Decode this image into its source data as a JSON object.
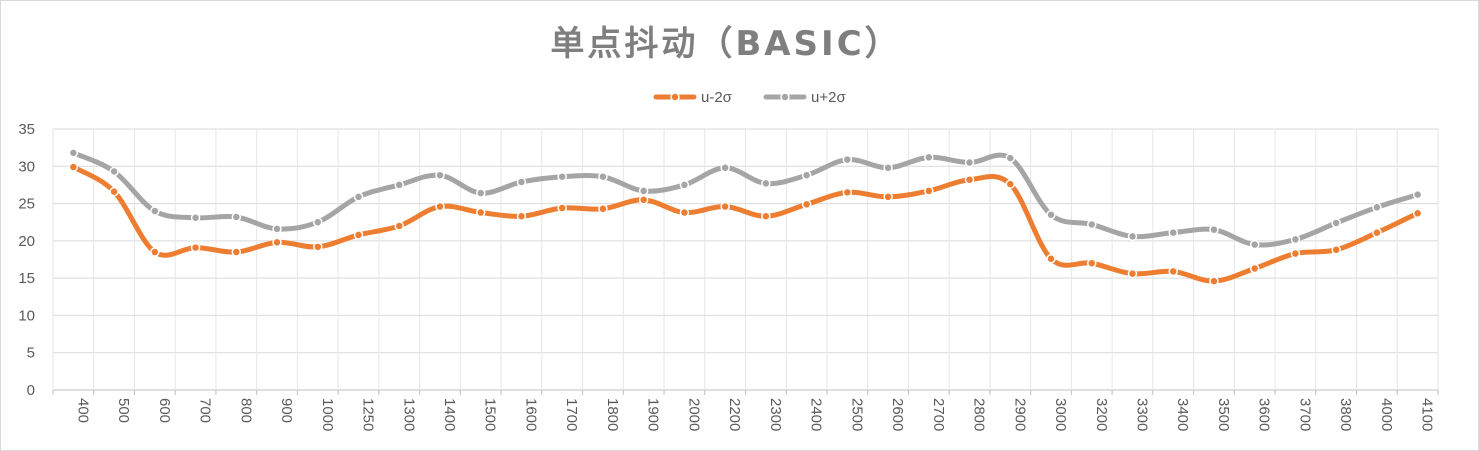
{
  "chart_data": {
    "type": "line",
    "title": "单点抖动（BASIC）",
    "xlabel": "",
    "ylabel": "",
    "categories": [
      "400",
      "500",
      "600",
      "700",
      "800",
      "900",
      "1000",
      "1250",
      "1300",
      "1400",
      "1500",
      "1600",
      "1700",
      "1800",
      "1900",
      "2000",
      "2200",
      "2300",
      "2400",
      "2500",
      "2600",
      "2700",
      "2800",
      "2900",
      "3000",
      "3200",
      "3300",
      "3400",
      "3500",
      "3600",
      "3700",
      "3800",
      "4000",
      "4100"
    ],
    "ylim": [
      0,
      35
    ],
    "yticks": [
      "0",
      "5",
      "10",
      "15",
      "20",
      "25",
      "30",
      "35"
    ],
    "grid": true,
    "legend_position": "top-center",
    "smooth": true,
    "series": [
      {
        "name": "u-2σ",
        "color": "#ed7d31",
        "values": [
          29.9,
          26.6,
          18.5,
          19.1,
          18.5,
          19.8,
          19.2,
          20.8,
          22.0,
          24.6,
          23.8,
          23.3,
          24.4,
          24.3,
          25.5,
          23.8,
          24.6,
          23.3,
          24.9,
          26.5,
          25.9,
          26.7,
          28.2,
          27.6,
          17.6,
          17.0,
          15.6,
          15.9,
          14.6,
          16.3,
          18.3,
          18.8,
          21.1,
          23.7
        ]
      },
      {
        "name": "u+2σ",
        "color": "#a5a5a5",
        "values": [
          31.8,
          29.3,
          24.0,
          23.1,
          23.2,
          21.6,
          22.5,
          25.9,
          27.5,
          28.8,
          26.4,
          27.9,
          28.6,
          28.6,
          26.7,
          27.5,
          29.8,
          27.7,
          28.8,
          30.9,
          29.8,
          31.2,
          30.5,
          31.1,
          23.5,
          22.2,
          20.6,
          21.1,
          21.5,
          19.5,
          20.2,
          22.4,
          24.5,
          26.2
        ]
      }
    ]
  }
}
